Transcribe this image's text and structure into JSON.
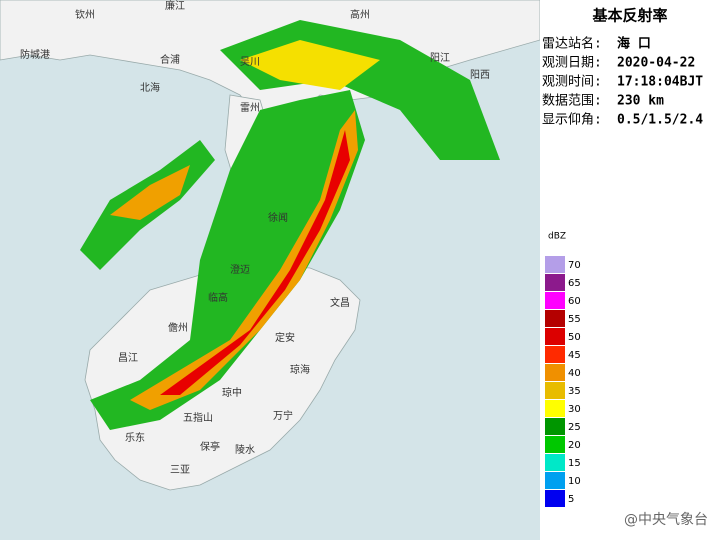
{
  "title": "基本反射率",
  "info": [
    {
      "label": "雷达站名:",
      "value": "海 口"
    },
    {
      "label": "观测日期:",
      "value": "2020-04-22"
    },
    {
      "label": "观测时间:",
      "value": "17:18:04BJT"
    },
    {
      "label": "数据范围:",
      "value": "230 km"
    },
    {
      "label": "显示仰角:",
      "value": "0.5/1.5/2.4"
    }
  ],
  "legend": {
    "unit": "dBZ",
    "levels": [
      {
        "value": 70,
        "color": "#b49ee8"
      },
      {
        "value": 65,
        "color": "#8c1a8c"
      },
      {
        "value": 60,
        "color": "#ff00ff"
      },
      {
        "value": 55,
        "color": "#b40000"
      },
      {
        "value": 50,
        "color": "#dc0000"
      },
      {
        "value": 45,
        "color": "#ff2a00"
      },
      {
        "value": 40,
        "color": "#f09000"
      },
      {
        "value": 35,
        "color": "#e8bc00"
      },
      {
        "value": 30,
        "color": "#ffff00"
      },
      {
        "value": 25,
        "color": "#009600"
      },
      {
        "value": 20,
        "color": "#00c800"
      },
      {
        "value": 15,
        "color": "#00e8c8"
      },
      {
        "value": 10,
        "color": "#00a0f0"
      },
      {
        "value": 5,
        "color": "#0000f0"
      }
    ]
  },
  "places": [
    "钦州",
    "廉江",
    "高州",
    "防城港",
    "合浦",
    "北海",
    "吴川",
    "阳江",
    "雷州",
    "徐闻",
    "临高",
    "文昌",
    "儋州",
    "定安",
    "昌江",
    "琼海",
    "琼中",
    "五指山",
    "万宁",
    "乐东",
    "保亭",
    "陵水",
    "三亚",
    "阳西",
    "澄迈"
  ],
  "watermark": "@中央气象台"
}
